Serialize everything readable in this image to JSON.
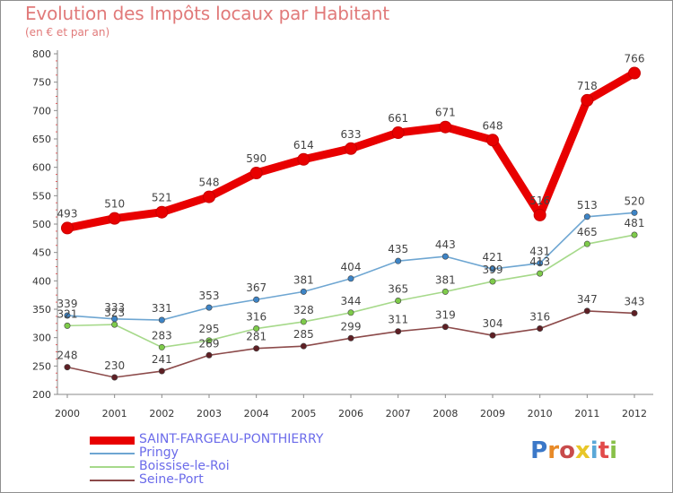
{
  "header": {
    "title": "Evolution des Impôts locaux par Habitant",
    "subtitle": "(en € et par an)"
  },
  "logo": {
    "text": "Proxiti",
    "letters": [
      {
        "ch": "P",
        "color": "#3b78c8"
      },
      {
        "ch": "r",
        "color": "#e88a28"
      },
      {
        "ch": "o",
        "color": "#c84b4b"
      },
      {
        "ch": "x",
        "color": "#e8c628"
      },
      {
        "ch": "i",
        "color": "#5aa8d8"
      },
      {
        "ch": "t",
        "color": "#e24a4a"
      },
      {
        "ch": "i",
        "color": "#88c048"
      }
    ]
  },
  "chart_data": {
    "type": "line",
    "title": "Evolution des Impôts locaux par Habitant",
    "subtitle": "(en € et par an)",
    "x": [
      2000,
      2001,
      2002,
      2003,
      2004,
      2005,
      2006,
      2007,
      2008,
      2009,
      2010,
      2011,
      2012
    ],
    "ylim": [
      200,
      800
    ],
    "yticks": [
      200,
      250,
      300,
      350,
      400,
      450,
      500,
      550,
      600,
      650,
      700,
      750,
      800
    ],
    "grid": false,
    "legend_position": "bottom-left",
    "series": [
      {
        "name": "SAINT-FARGEAU-PONTHIERRY",
        "color": "#e80000",
        "emphasis": true,
        "values": [
          493,
          510,
          521,
          548,
          590,
          614,
          633,
          661,
          671,
          648,
          516,
          718,
          766
        ]
      },
      {
        "name": "Pringy",
        "color": "#6ea6d2",
        "marker": "#3d84c6",
        "values": [
          339,
          333,
          331,
          353,
          367,
          381,
          404,
          435,
          443,
          421,
          431,
          513,
          520
        ]
      },
      {
        "name": "Boissise-le-Roi",
        "color": "#a6d98a",
        "marker": "#7ecb4a",
        "values": [
          321,
          323,
          283,
          295,
          316,
          328,
          344,
          365,
          381,
          399,
          413,
          465,
          481
        ]
      },
      {
        "name": "Seine-Port",
        "color": "#8c4a4a",
        "marker": "#5e1f24",
        "values": [
          248,
          230,
          241,
          269,
          281,
          285,
          299,
          311,
          319,
          304,
          316,
          347,
          343
        ]
      }
    ],
    "visible_data_labels": {
      "SAINT-FARGEAU-PONTHIERRY": [
        "493",
        "510",
        "521",
        "548",
        "590",
        "614",
        "633",
        "661",
        "671",
        "648",
        "516",
        "718",
        "766"
      ],
      "Pringy": [
        "339",
        "333",
        "331",
        "353",
        "367",
        "381",
        "404",
        "435",
        "443",
        "421",
        "431",
        "513",
        "520"
      ],
      "Boissise-le-Roi": [
        "321",
        "323",
        "283",
        "295",
        "316",
        "328",
        "344",
        "365",
        "381",
        "399",
        "413",
        "465",
        "481"
      ],
      "Seine-Port": [
        "248",
        "230",
        "241",
        "269",
        "281",
        "285",
        "299",
        "311",
        "319",
        "304",
        "316",
        "347",
        "343"
      ]
    }
  }
}
